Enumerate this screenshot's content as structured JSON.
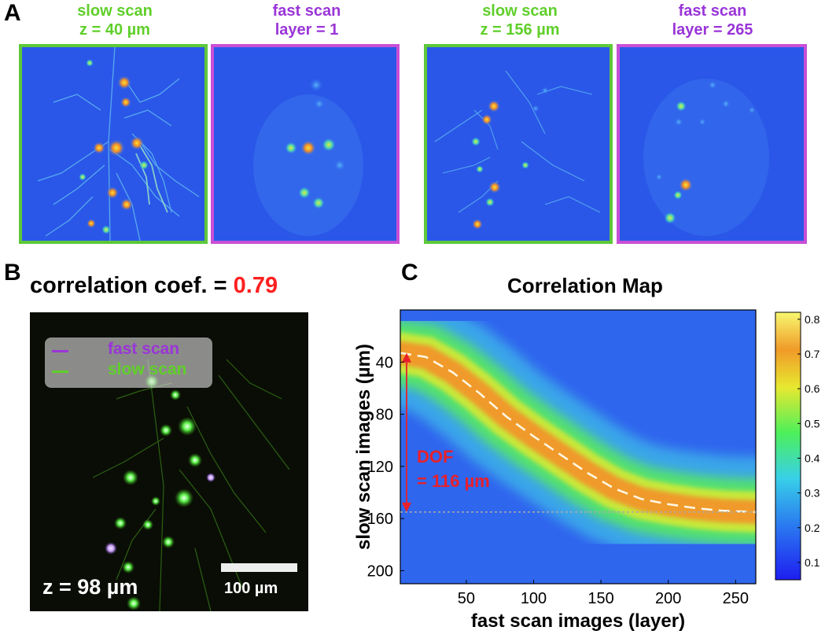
{
  "panel_labels": {
    "a": "A",
    "b": "B",
    "c": "C"
  },
  "panel_a": {
    "images": [
      {
        "line1": "slow scan",
        "line2": "z = 40 µm",
        "kind": "slow"
      },
      {
        "line1": "fast scan",
        "line2": "layer = 1",
        "kind": "fast"
      },
      {
        "line1": "slow scan",
        "line2": "z = 156 µm",
        "kind": "slow"
      },
      {
        "line1": "fast scan",
        "line2": "layer = 265",
        "kind": "fast"
      }
    ]
  },
  "panel_b": {
    "corr_prefix": "correlation coef. = ",
    "corr_value": "0.79",
    "legend": [
      "fast scan",
      "slow scan"
    ],
    "z_label": "z = 98 µm",
    "scalebar_label": "100 µm"
  },
  "chart_data": {
    "type": "heatmap",
    "title": "Correlation Map",
    "xlabel": "fast scan images (layer)",
    "ylabel": "slow scan images (µm)",
    "xlim": [
      1,
      265
    ],
    "ylim": [
      210,
      0
    ],
    "xticks": [
      50,
      100,
      150,
      200,
      250
    ],
    "yticks": [
      40,
      80,
      120,
      160,
      200
    ],
    "colorbar": {
      "min": 0.05,
      "max": 0.82,
      "ticks": [
        0.1,
        0.2,
        0.3,
        0.4,
        0.5,
        0.6,
        0.7,
        0.8
      ]
    },
    "ridge_peak_value": 0.8,
    "background_value": 0.15,
    "ridge": {
      "x": [
        1,
        20,
        40,
        60,
        80,
        100,
        120,
        140,
        160,
        180,
        200,
        220,
        240,
        265
      ],
      "y": [
        33,
        36,
        48,
        64,
        82,
        97,
        111,
        125,
        137,
        145,
        149,
        152,
        154,
        155
      ]
    },
    "dof_annotation": {
      "line1": "DOF",
      "line2": "= 116 µm",
      "y_start": 33,
      "y_end": 155
    }
  },
  "colors": {
    "slow": "#5fcf2a",
    "fast": "#9a35d8",
    "dof": "#e8202a",
    "corr_value": "#ff2020"
  }
}
